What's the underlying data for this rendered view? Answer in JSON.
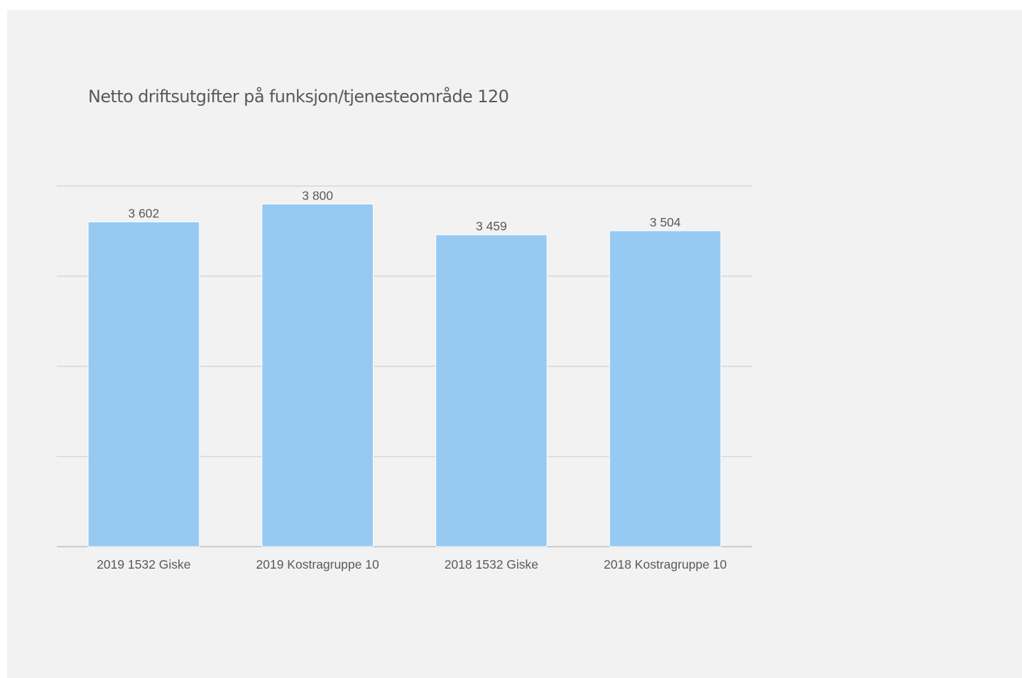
{
  "chart_data": {
    "type": "bar",
    "title": "Netto driftsutgifter på funksjon/tjenesteområde 120",
    "categories": [
      "2019 1532 Giske",
      "2019 Kostragruppe 10",
      "2018 1532 Giske",
      "2018 Kostragruppe 10"
    ],
    "values": [
      3602,
      3800,
      3459,
      3504
    ],
    "value_labels": [
      "3 602",
      "3 800",
      "3 459",
      "3 504"
    ],
    "xlabel": "",
    "ylabel": "",
    "ylim": [
      0,
      4000
    ],
    "grid": true,
    "legend": "none",
    "colors": {
      "bar": "#97caf3",
      "background": "#f2f2f2",
      "text": "#595959",
      "grid": "#c8c8c8"
    }
  }
}
